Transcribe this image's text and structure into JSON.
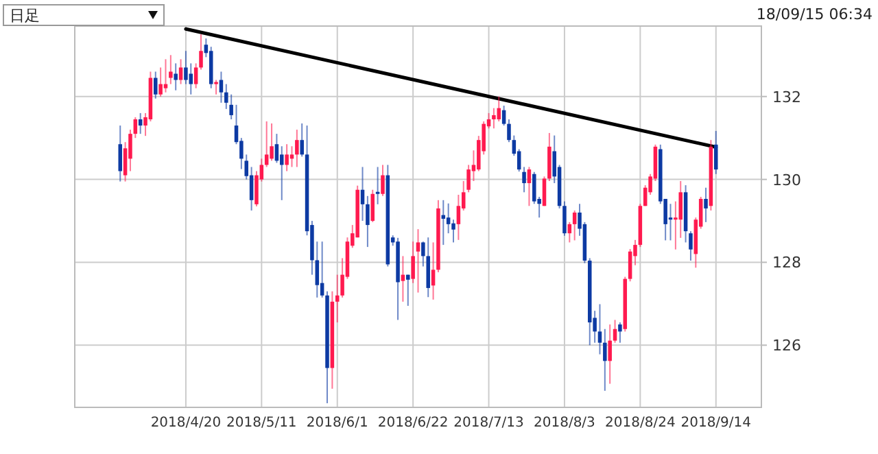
{
  "chart_data": {
    "type": "candlestick",
    "annotations": [
      "日足",
      "18/09/15 06:34"
    ],
    "categories": [
      null,
      null,
      null,
      null,
      null,
      null,
      null,
      null,
      null,
      null,
      null,
      null,
      null,
      "2018/4/20",
      null,
      null,
      null,
      null,
      null,
      null,
      null,
      null,
      null,
      null,
      null,
      null,
      null,
      null,
      "2018/5/11",
      null,
      null,
      null,
      null,
      null,
      null,
      null,
      null,
      null,
      null,
      null,
      null,
      null,
      null,
      "2018/6/1",
      null,
      null,
      null,
      null,
      null,
      null,
      null,
      null,
      null,
      null,
      null,
      null,
      null,
      null,
      "2018/6/22",
      null,
      null,
      null,
      null,
      null,
      null,
      null,
      null,
      null,
      null,
      null,
      null,
      null,
      null,
      "2018/7/13",
      null,
      null,
      null,
      null,
      null,
      null,
      null,
      null,
      null,
      null,
      null,
      null,
      null,
      null,
      "2018/8/3",
      null,
      null,
      null,
      null,
      null,
      null,
      null,
      null,
      null,
      null,
      null,
      null,
      null,
      null,
      "2018/8/24",
      null,
      null,
      null,
      null,
      null,
      null,
      null,
      null,
      null,
      null,
      null,
      null,
      null,
      null,
      "2018/9/14"
    ],
    "ohlc": [
      [
        130.85,
        131.3,
        129.95,
        130.2
      ],
      [
        130.1,
        130.9,
        129.95,
        130.75
      ],
      [
        130.5,
        131.2,
        130.2,
        131.1
      ],
      [
        131.1,
        131.5,
        131.0,
        131.45
      ],
      [
        131.45,
        131.6,
        131.1,
        131.3
      ],
      [
        131.3,
        131.6,
        131.05,
        131.5
      ],
      [
        131.45,
        132.6,
        131.4,
        132.45
      ],
      [
        132.45,
        132.6,
        131.95,
        132.05
      ],
      [
        132.05,
        132.7,
        132.0,
        132.3
      ],
      [
        132.2,
        132.9,
        132.1,
        132.3
      ],
      [
        132.45,
        133.0,
        132.3,
        132.6
      ],
      [
        132.55,
        132.8,
        132.15,
        132.4
      ],
      [
        132.4,
        132.9,
        132.3,
        132.7
      ],
      [
        132.7,
        133.1,
        132.3,
        132.4
      ],
      [
        132.55,
        132.8,
        132.05,
        132.3
      ],
      [
        132.3,
        132.8,
        132.2,
        132.7
      ],
      [
        132.7,
        133.5,
        132.65,
        133.1
      ],
      [
        133.25,
        133.4,
        132.95,
        133.05
      ],
      [
        133.1,
        133.2,
        132.2,
        132.3
      ],
      [
        132.3,
        132.4,
        132.05,
        132.35
      ],
      [
        132.4,
        132.6,
        131.85,
        132.1
      ],
      [
        132.1,
        132.3,
        131.7,
        131.85
      ],
      [
        131.8,
        132.05,
        131.45,
        131.55
      ],
      [
        131.3,
        131.8,
        130.85,
        130.9
      ],
      [
        130.93,
        131.0,
        130.25,
        130.5
      ],
      [
        130.45,
        130.6,
        130.0,
        130.08
      ],
      [
        130.1,
        130.3,
        129.25,
        129.5
      ],
      [
        129.4,
        130.2,
        129.35,
        130.1
      ],
      [
        130.0,
        130.5,
        129.95,
        130.35
      ],
      [
        130.35,
        131.4,
        130.3,
        130.6
      ],
      [
        130.5,
        131.35,
        130.45,
        130.8
      ],
      [
        130.85,
        131.1,
        130.4,
        130.45
      ],
      [
        130.6,
        130.8,
        129.5,
        130.35
      ],
      [
        130.35,
        130.85,
        130.2,
        130.6
      ],
      [
        130.5,
        130.8,
        130.3,
        130.6
      ],
      [
        130.6,
        131.2,
        130.3,
        130.95
      ],
      [
        130.95,
        131.35,
        130.55,
        130.6
      ],
      [
        130.6,
        131.3,
        128.65,
        128.75
      ],
      [
        128.9,
        129.0,
        127.7,
        128.05
      ],
      [
        128.05,
        128.5,
        127.15,
        127.45
      ],
      [
        127.5,
        128.5,
        127.15,
        127.2
      ],
      [
        127.2,
        127.3,
        124.6,
        125.45
      ],
      [
        125.45,
        127.3,
        124.95,
        127.05
      ],
      [
        127.05,
        127.7,
        126.55,
        127.2
      ],
      [
        127.2,
        128.1,
        127.15,
        127.7
      ],
      [
        127.65,
        128.6,
        127.6,
        128.5
      ],
      [
        128.4,
        128.9,
        128.35,
        128.7
      ],
      [
        128.6,
        129.85,
        128.6,
        129.75
      ],
      [
        129.75,
        130.3,
        129.0,
        129.4
      ],
      [
        129.4,
        129.6,
        128.37,
        128.9
      ],
      [
        129.0,
        129.75,
        128.97,
        129.65
      ],
      [
        129.7,
        130.3,
        129.4,
        129.65
      ],
      [
        129.65,
        130.35,
        129.6,
        130.1
      ],
      [
        130.1,
        130.35,
        127.9,
        127.95
      ],
      [
        128.6,
        128.65,
        128.4,
        128.48
      ],
      [
        128.5,
        128.59,
        126.61,
        127.52
      ],
      [
        127.55,
        128.15,
        127.05,
        127.7
      ],
      [
        127.7,
        127.7,
        126.95,
        127.58
      ],
      [
        127.6,
        128.5,
        127.5,
        128.15
      ],
      [
        128.26,
        128.8,
        127.27,
        128.48
      ],
      [
        128.48,
        128.5,
        127.9,
        128.15
      ],
      [
        128.15,
        128.6,
        127.16,
        127.38
      ],
      [
        127.44,
        128.48,
        127.1,
        127.82
      ],
      [
        127.82,
        129.5,
        127.76,
        129.3
      ],
      [
        129.14,
        129.5,
        128.42,
        129.05
      ],
      [
        129.08,
        129.42,
        128.7,
        128.92
      ],
      [
        128.94,
        129.03,
        128.48,
        128.79
      ],
      [
        128.92,
        129.63,
        128.54,
        129.36
      ],
      [
        129.3,
        129.96,
        129.25,
        129.69
      ],
      [
        129.75,
        130.35,
        129.69,
        130.24
      ],
      [
        130.2,
        130.7,
        129.96,
        130.35
      ],
      [
        130.24,
        131.05,
        130.2,
        130.95
      ],
      [
        130.68,
        131.4,
        130.6,
        131.34
      ],
      [
        131.28,
        131.6,
        131.23,
        131.45
      ],
      [
        131.45,
        131.72,
        131.23,
        131.55
      ],
      [
        131.45,
        132.0,
        131.4,
        131.72
      ],
      [
        131.67,
        131.78,
        131.3,
        131.34
      ],
      [
        131.34,
        131.45,
        130.9,
        130.95
      ],
      [
        130.95,
        131.06,
        130.57,
        130.62
      ],
      [
        130.68,
        130.73,
        130.19,
        130.24
      ],
      [
        130.18,
        130.3,
        129.69,
        129.91
      ],
      [
        129.91,
        130.3,
        129.36,
        130.24
      ],
      [
        130.13,
        130.18,
        129.41,
        129.47
      ],
      [
        129.53,
        129.58,
        129.08,
        129.41
      ],
      [
        129.36,
        130.07,
        129.36,
        130.02
      ],
      [
        130.02,
        131.12,
        129.96,
        130.79
      ],
      [
        130.68,
        131.06,
        129.91,
        130.07
      ],
      [
        130.3,
        130.35,
        129.3,
        129.36
      ],
      [
        129.36,
        129.47,
        128.64,
        128.7
      ],
      [
        128.7,
        128.97,
        128.48,
        128.92
      ],
      [
        128.92,
        129.25,
        128.53,
        129.2
      ],
      [
        129.2,
        129.41,
        128.64,
        128.81
      ],
      [
        128.92,
        128.97,
        127.98,
        128.04
      ],
      [
        128.04,
        128.1,
        126.0,
        126.55
      ],
      [
        126.66,
        126.83,
        126.06,
        126.33
      ],
      [
        126.33,
        126.99,
        125.78,
        126.06
      ],
      [
        126.06,
        126.39,
        124.9,
        125.62
      ],
      [
        125.62,
        126.5,
        125.07,
        126.11
      ],
      [
        126.11,
        126.61,
        126.06,
        126.39
      ],
      [
        126.5,
        126.55,
        126.06,
        126.33
      ],
      [
        126.39,
        127.65,
        126.33,
        127.6
      ],
      [
        127.6,
        128.32,
        127.54,
        128.26
      ],
      [
        128.15,
        128.54,
        127.93,
        128.42
      ],
      [
        128.42,
        129.41,
        128.37,
        129.36
      ],
      [
        129.36,
        129.86,
        129.36,
        129.8
      ],
      [
        129.69,
        130.13,
        129.63,
        130.07
      ],
      [
        130.02,
        130.84,
        129.96,
        130.79
      ],
      [
        130.73,
        130.84,
        129.41,
        129.47
      ],
      [
        129.53,
        129.53,
        128.53,
        128.92
      ],
      [
        129.08,
        129.41,
        128.53,
        129.03
      ],
      [
        129.03,
        129.47,
        128.31,
        129.08
      ],
      [
        129.03,
        129.96,
        128.59,
        129.69
      ],
      [
        129.69,
        129.86,
        128.48,
        128.75
      ],
      [
        128.7,
        128.75,
        128.04,
        128.31
      ],
      [
        128.2,
        129.08,
        127.87,
        129.03
      ],
      [
        128.86,
        129.58,
        128.81,
        129.53
      ],
      [
        129.53,
        129.8,
        128.97,
        129.3
      ],
      [
        129.36,
        130.95,
        129.25,
        130.79
      ],
      [
        130.84,
        131.17,
        130.13,
        130.24
      ]
    ],
    "colors": [
      "#0d3aa3",
      "#ff1a4f",
      "#ff1a4f",
      "#ff1a4f",
      "#0d3aa3",
      "#ff1a4f",
      "#ff1a4f",
      "#0d3aa3",
      "#ff1a4f",
      "#ff1a4f",
      "#ff1a4f",
      "#0d3aa3",
      "#ff1a4f",
      "#0d3aa3",
      "#0d3aa3",
      "#ff1a4f",
      "#ff1a4f",
      "#0d3aa3",
      "#0d3aa3",
      "#ff1a4f",
      "#0d3aa3",
      "#0d3aa3",
      "#0d3aa3",
      "#0d3aa3",
      "#0d3aa3",
      "#0d3aa3",
      "#0d3aa3",
      "#ff1a4f",
      "#ff1a4f",
      "#ff1a4f",
      "#ff1a4f",
      "#0d3aa3",
      "#0d3aa3",
      "#ff1a4f",
      "#ff1a4f",
      "#ff1a4f",
      "#0d3aa3",
      "#0d3aa3",
      "#0d3aa3",
      "#0d3aa3",
      "#0d3aa3",
      "#0d3aa3",
      "#ff1a4f",
      "#ff1a4f",
      "#ff1a4f",
      "#ff1a4f",
      "#ff1a4f",
      "#ff1a4f",
      "#0d3aa3",
      "#0d3aa3",
      "#ff1a4f",
      "#0d3aa3",
      "#ff1a4f",
      "#0d3aa3",
      "#0d3aa3",
      "#0d3aa3",
      "#ff1a4f",
      "#0d3aa3",
      "#ff1a4f",
      "#ff1a4f",
      "#0d3aa3",
      "#0d3aa3",
      "#ff1a4f",
      "#ff1a4f",
      "#0d3aa3",
      "#0d3aa3",
      "#0d3aa3",
      "#ff1a4f",
      "#ff1a4f",
      "#ff1a4f",
      "#ff1a4f",
      "#ff1a4f",
      "#ff1a4f",
      "#ff1a4f",
      "#ff1a4f",
      "#ff1a4f",
      "#0d3aa3",
      "#0d3aa3",
      "#0d3aa3",
      "#0d3aa3",
      "#0d3aa3",
      "#ff1a4f",
      "#0d3aa3",
      "#0d3aa3",
      "#ff1a4f",
      "#ff1a4f",
      "#0d3aa3",
      "#0d3aa3",
      "#0d3aa3",
      "#ff1a4f",
      "#ff1a4f",
      "#0d3aa3",
      "#0d3aa3",
      "#0d3aa3",
      "#0d3aa3",
      "#0d3aa3",
      "#0d3aa3",
      "#ff1a4f",
      "#ff1a4f",
      "#0d3aa3",
      "#ff1a4f",
      "#ff1a4f",
      "#ff1a4f",
      "#ff1a4f",
      "#ff1a4f",
      "#ff1a4f",
      "#ff1a4f",
      "#0d3aa3",
      "#0d3aa3",
      "#0d3aa3",
      "#ff1a4f",
      "#ff1a4f",
      "#0d3aa3",
      "#0d3aa3",
      "#ff1a4f",
      "#ff1a4f",
      "#0d3aa3",
      "#ff1a4f",
      "#0d3aa3"
    ],
    "series": [
      {
        "type": "line",
        "x": [
          "2018/4/20",
          "2018/9/14"
        ],
        "values": [
          133.63,
          130.78
        ],
        "color": "#000000"
      }
    ],
    "ylim": [
      124.5,
      133.7
    ],
    "yticks": [
      126,
      128,
      130,
      132
    ],
    "grid": true
  }
}
